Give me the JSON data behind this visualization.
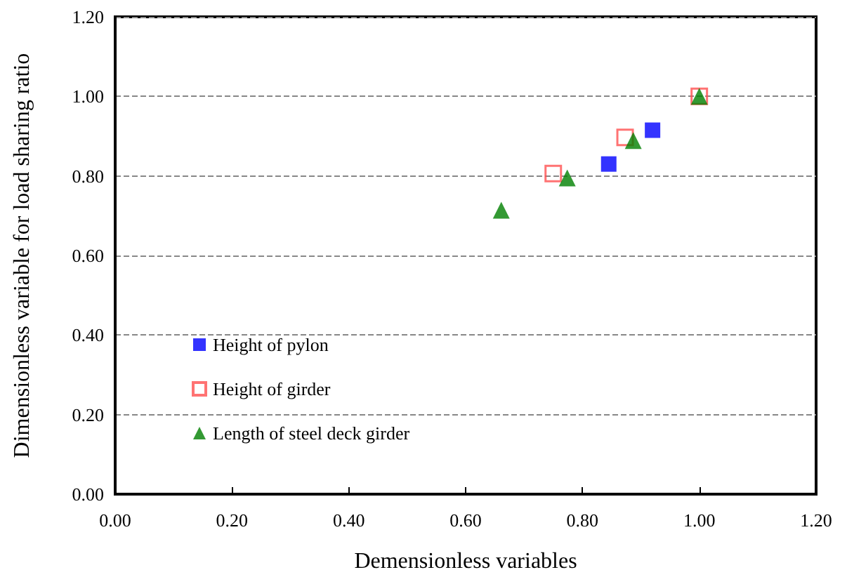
{
  "chart_data": {
    "type": "scatter",
    "xlabel": "Demensionless variables",
    "ylabel": "Dimensionless variable for load sharing ratio",
    "xlim": [
      0,
      1.2
    ],
    "xticks": [
      {
        "value": 0,
        "label": "0.00"
      },
      {
        "value": 0.2,
        "label": "0.20"
      },
      {
        "value": 0.4,
        "label": "0.40"
      },
      {
        "value": 0.6,
        "label": "0.60"
      },
      {
        "value": 0.8,
        "label": "0.80"
      },
      {
        "value": 1,
        "label": "1.00"
      },
      {
        "value": 1.2,
        "label": "1.20"
      }
    ],
    "ylim": [
      0,
      1.2
    ],
    "yticks": [
      {
        "value": 0,
        "label": "0.00"
      },
      {
        "value": 0.2,
        "label": "0.20"
      },
      {
        "value": 0.4,
        "label": "0.40"
      },
      {
        "value": 0.6,
        "label": "0.60"
      },
      {
        "value": 0.8,
        "label": "0.80"
      },
      {
        "value": 1,
        "label": "1.00"
      },
      {
        "value": 1.2,
        "label": "1.20"
      }
    ],
    "grid": "y",
    "legend": "bottom left",
    "series": [
      {
        "name": "Height of pylon",
        "color": "#0000ff",
        "marker": "square",
        "x": [
          0.845,
          0.92
        ],
        "values": [
          0.83,
          0.915
        ]
      },
      {
        "name": "Height of girder",
        "color": "#ff5050",
        "marker": "square-open",
        "x": [
          0.75,
          0.873,
          1.0
        ],
        "values": [
          0.806,
          0.897,
          1.0
        ]
      },
      {
        "name": "Length of steel deck girder",
        "color": "#008000",
        "marker": "triangle",
        "x": [
          0.661,
          0.774,
          0.887,
          1.0
        ],
        "values": [
          0.714,
          0.795,
          0.889,
          1.0
        ]
      }
    ]
  }
}
